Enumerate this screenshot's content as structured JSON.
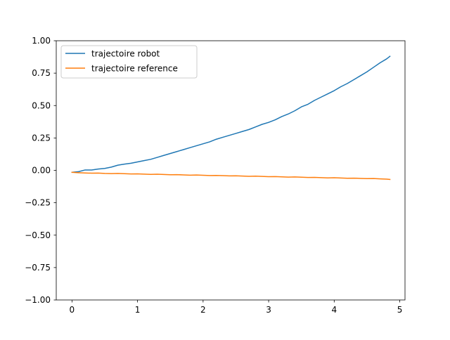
{
  "chart_data": {
    "type": "line",
    "title": "",
    "xlabel": "",
    "ylabel": "",
    "xlim": [
      -0.24,
      5.08
    ],
    "ylim": [
      -1.0,
      1.0
    ],
    "x_ticks": [
      0,
      1,
      2,
      3,
      4,
      5
    ],
    "y_ticks": [
      -1.0,
      -0.75,
      -0.5,
      -0.25,
      0.0,
      0.25,
      0.5,
      0.75,
      1.0
    ],
    "x_tick_labels": [
      "0",
      "1",
      "2",
      "3",
      "4",
      "5"
    ],
    "y_tick_labels": [
      "−1.00",
      "−0.75",
      "−0.50",
      "−0.25",
      "0.00",
      "0.25",
      "0.50",
      "0.75",
      "1.00"
    ],
    "grid": false,
    "legend_position": "upper-left",
    "series": [
      {
        "name": "trajectoire robot",
        "color": "#1f77b4",
        "x": [
          0,
          0.1,
          0.2,
          0.3,
          0.4,
          0.5,
          0.6,
          0.7,
          0.8,
          0.9,
          1.0,
          1.1,
          1.2,
          1.3,
          1.4,
          1.5,
          1.6,
          1.7,
          1.8,
          1.9,
          2.0,
          2.1,
          2.2,
          2.3,
          2.4,
          2.5,
          2.6,
          2.7,
          2.8,
          2.9,
          3.0,
          3.1,
          3.2,
          3.3,
          3.4,
          3.5,
          3.6,
          3.7,
          3.8,
          3.9,
          4.0,
          4.1,
          4.2,
          4.3,
          4.4,
          4.5,
          4.6,
          4.7,
          4.8,
          4.85
        ],
        "y": [
          -0.015,
          -0.01,
          0.003,
          0.003,
          0.01,
          0.015,
          0.025,
          0.04,
          0.048,
          0.055,
          0.065,
          0.075,
          0.085,
          0.1,
          0.115,
          0.13,
          0.145,
          0.16,
          0.175,
          0.19,
          0.205,
          0.22,
          0.24,
          0.255,
          0.27,
          0.285,
          0.3,
          0.315,
          0.335,
          0.355,
          0.37,
          0.39,
          0.415,
          0.435,
          0.46,
          0.49,
          0.51,
          0.54,
          0.565,
          0.59,
          0.615,
          0.645,
          0.67,
          0.7,
          0.73,
          0.76,
          0.795,
          0.83,
          0.86,
          0.88
        ]
      },
      {
        "name": "trajectoire reference",
        "color": "#ff7f0e",
        "x": [
          0,
          0.1,
          0.2,
          0.3,
          0.4,
          0.5,
          0.6,
          0.7,
          0.8,
          0.9,
          1.0,
          1.1,
          1.2,
          1.3,
          1.4,
          1.5,
          1.6,
          1.7,
          1.8,
          1.9,
          2.0,
          2.1,
          2.2,
          2.3,
          2.4,
          2.5,
          2.6,
          2.7,
          2.8,
          2.9,
          3.0,
          3.1,
          3.2,
          3.3,
          3.4,
          3.5,
          3.6,
          3.7,
          3.8,
          3.9,
          4.0,
          4.1,
          4.2,
          4.3,
          4.4,
          4.5,
          4.6,
          4.7,
          4.8,
          4.85
        ],
        "y": [
          -0.015,
          -0.018,
          -0.02,
          -0.022,
          -0.021,
          -0.024,
          -0.025,
          -0.024,
          -0.026,
          -0.028,
          -0.027,
          -0.029,
          -0.031,
          -0.03,
          -0.032,
          -0.034,
          -0.033,
          -0.035,
          -0.037,
          -0.036,
          -0.038,
          -0.04,
          -0.039,
          -0.041,
          -0.043,
          -0.042,
          -0.044,
          -0.046,
          -0.045,
          -0.047,
          -0.049,
          -0.048,
          -0.05,
          -0.052,
          -0.051,
          -0.053,
          -0.055,
          -0.054,
          -0.056,
          -0.058,
          -0.057,
          -0.059,
          -0.061,
          -0.06,
          -0.062,
          -0.064,
          -0.063,
          -0.066,
          -0.068,
          -0.07
        ]
      }
    ]
  }
}
